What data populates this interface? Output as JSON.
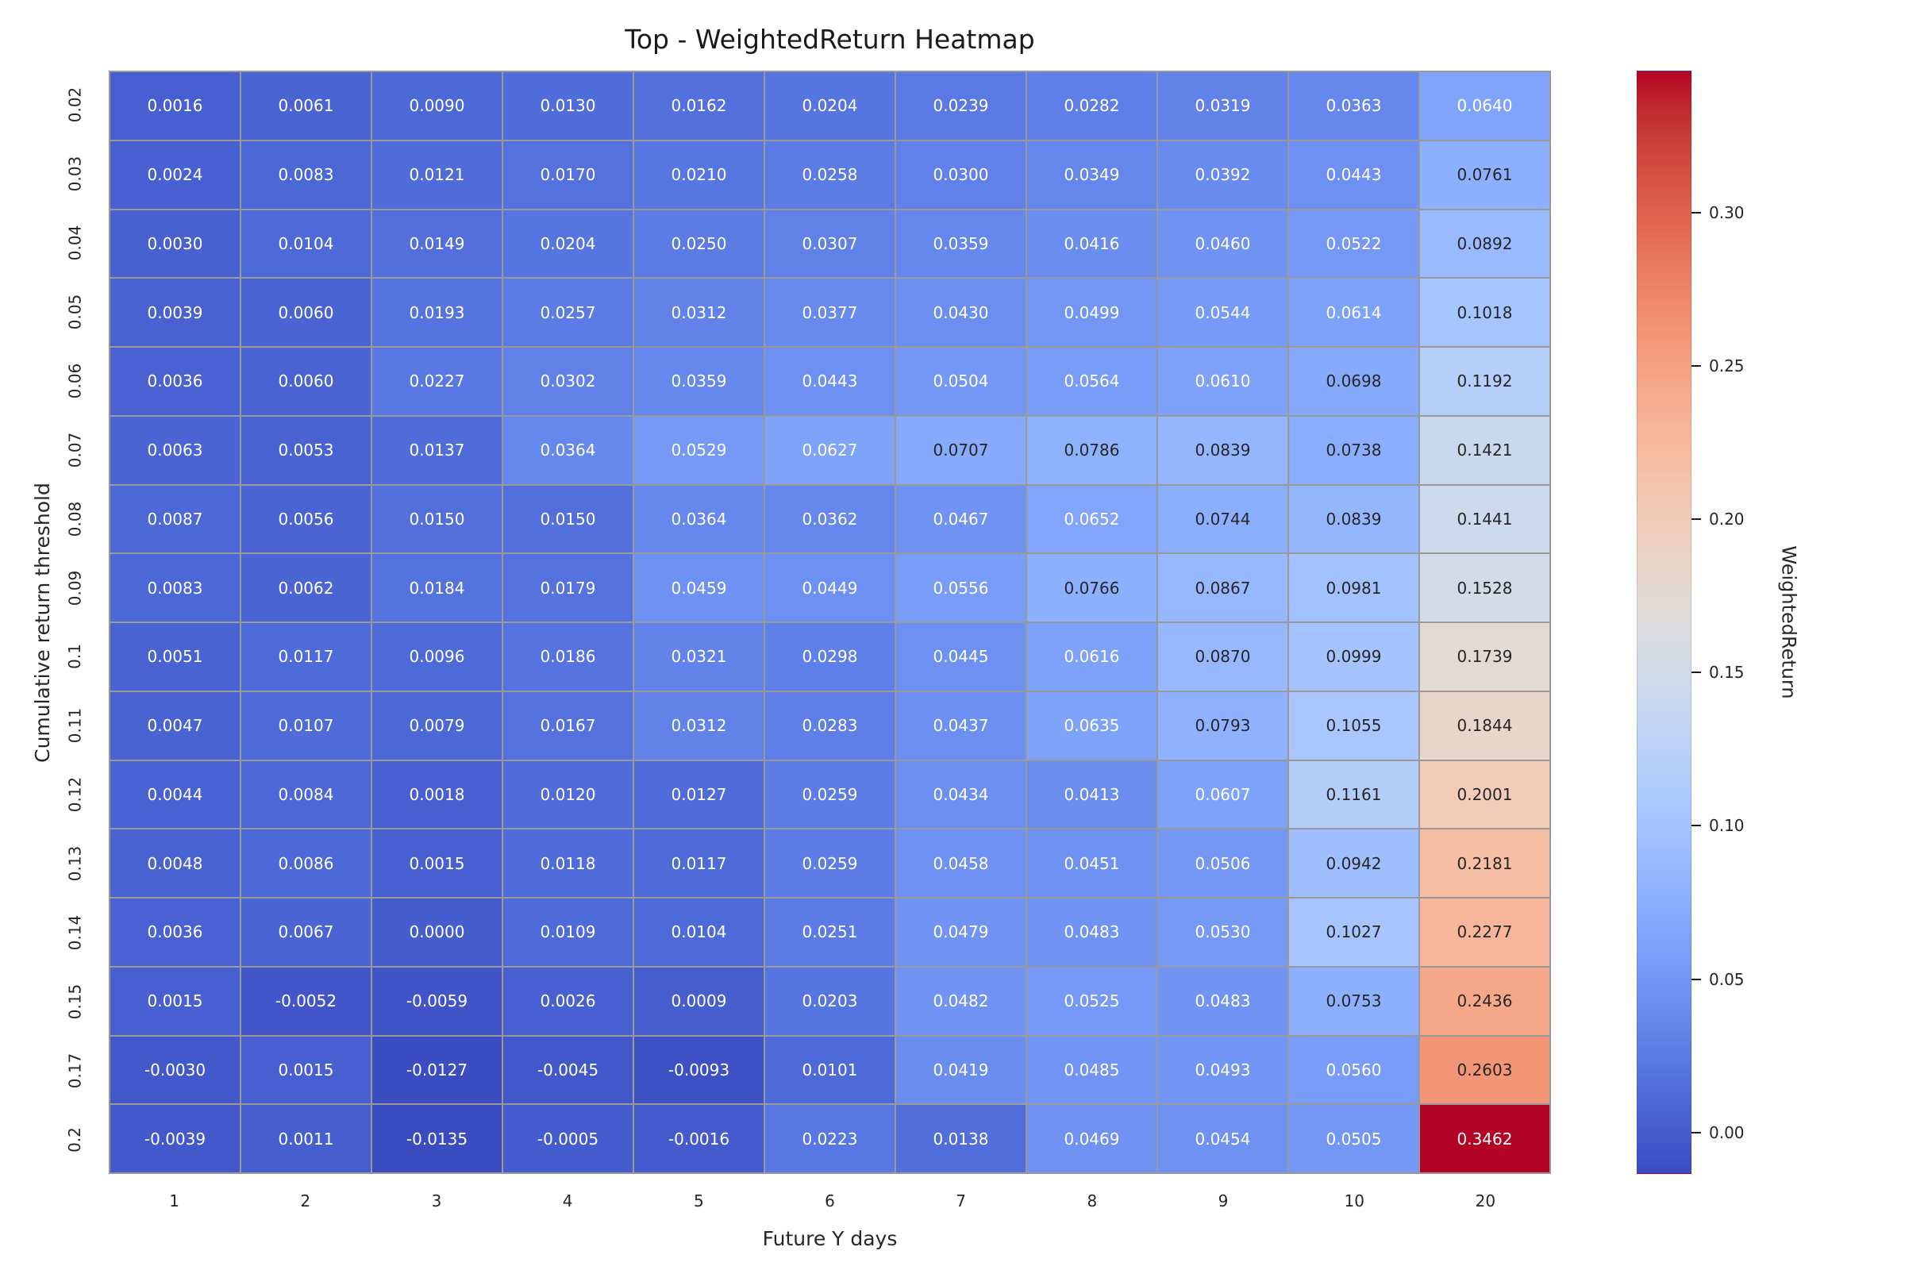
{
  "chart_data": {
    "type": "heatmap",
    "title": "Top - WeightedReturn Heatmap",
    "xlabel": "Future Y days",
    "ylabel": "Cumulative return threshold",
    "x_labels": [
      "1",
      "2",
      "3",
      "4",
      "5",
      "6",
      "7",
      "8",
      "9",
      "10",
      "20"
    ],
    "y_labels": [
      "0.02",
      "0.03",
      "0.04",
      "0.05",
      "0.06",
      "0.07",
      "0.08",
      "0.09",
      "0.1",
      "0.11",
      "0.12",
      "0.13",
      "0.14",
      "0.15",
      "0.17",
      "0.2"
    ],
    "values": [
      [
        0.0016,
        0.0061,
        0.009,
        0.013,
        0.0162,
        0.0204,
        0.0239,
        0.0282,
        0.0319,
        0.0363,
        0.064
      ],
      [
        0.0024,
        0.0083,
        0.0121,
        0.017,
        0.021,
        0.0258,
        0.03,
        0.0349,
        0.0392,
        0.0443,
        0.0761
      ],
      [
        0.003,
        0.0104,
        0.0149,
        0.0204,
        0.025,
        0.0307,
        0.0359,
        0.0416,
        0.046,
        0.0522,
        0.0892
      ],
      [
        0.0039,
        0.006,
        0.0193,
        0.0257,
        0.0312,
        0.0377,
        0.043,
        0.0499,
        0.0544,
        0.0614,
        0.1018
      ],
      [
        0.0036,
        0.006,
        0.0227,
        0.0302,
        0.0359,
        0.0443,
        0.0504,
        0.0564,
        0.061,
        0.0698,
        0.1192
      ],
      [
        0.0063,
        0.0053,
        0.0137,
        0.0364,
        0.0529,
        0.0627,
        0.0707,
        0.0786,
        0.0839,
        0.0738,
        0.1421
      ],
      [
        0.0087,
        0.0056,
        0.015,
        0.015,
        0.0364,
        0.0362,
        0.0467,
        0.0652,
        0.0744,
        0.0839,
        0.1441
      ],
      [
        0.0083,
        0.0062,
        0.0184,
        0.0179,
        0.0459,
        0.0449,
        0.0556,
        0.0766,
        0.0867,
        0.0981,
        0.1528
      ],
      [
        0.0051,
        0.0117,
        0.0096,
        0.0186,
        0.0321,
        0.0298,
        0.0445,
        0.0616,
        0.087,
        0.0999,
        0.1739
      ],
      [
        0.0047,
        0.0107,
        0.0079,
        0.0167,
        0.0312,
        0.0283,
        0.0437,
        0.0635,
        0.0793,
        0.1055,
        0.1844
      ],
      [
        0.0044,
        0.0084,
        0.0018,
        0.012,
        0.0127,
        0.0259,
        0.0434,
        0.0413,
        0.0607,
        0.1161,
        0.2001
      ],
      [
        0.0048,
        0.0086,
        0.0015,
        0.0118,
        0.0117,
        0.0259,
        0.0458,
        0.0451,
        0.0506,
        0.0942,
        0.2181
      ],
      [
        0.0036,
        0.0067,
        0.0,
        0.0109,
        0.0104,
        0.0251,
        0.0479,
        0.0483,
        0.053,
        0.1027,
        0.2277
      ],
      [
        0.0015,
        -0.0052,
        -0.0059,
        0.0026,
        0.0009,
        0.0203,
        0.0482,
        0.0525,
        0.0483,
        0.0753,
        0.2436
      ],
      [
        -0.003,
        0.0015,
        -0.0127,
        -0.0045,
        -0.0093,
        0.0101,
        0.0419,
        0.0485,
        0.0493,
        0.056,
        0.2603
      ],
      [
        -0.0039,
        0.0011,
        -0.0135,
        -0.0005,
        -0.0016,
        0.0223,
        0.0138,
        0.0469,
        0.0454,
        0.0505,
        0.3462
      ]
    ],
    "vmin": -0.0135,
    "vmax": 0.3462,
    "annotation_decimals": 4,
    "colormap": "coolwarm",
    "legend_position": "right-colorbar",
    "grid": false,
    "colorbar": {
      "label": "WeightedReturn",
      "tick_labels": [
        "0.00",
        "0.05",
        "0.10",
        "0.15",
        "0.20",
        "0.25",
        "0.30"
      ],
      "tick_values": [
        0.0,
        0.05,
        0.1,
        0.15,
        0.2,
        0.25,
        0.3
      ]
    },
    "colors": {
      "min_cell": "#3b4cc0",
      "mid_cell": "#dddddd",
      "max_cell": "#b40426",
      "cell_line": "#999999",
      "dark_text": "#262626",
      "light_text": "#ffffff"
    }
  }
}
